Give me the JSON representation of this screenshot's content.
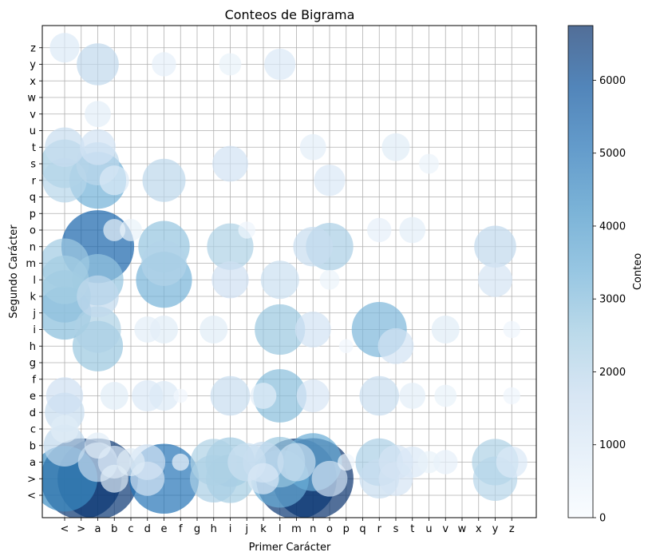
{
  "chart_data": {
    "type": "scatter",
    "title": "Conteos de Bigrama",
    "xlabel": "Primer Carácter",
    "ylabel": "Segundo Carácter",
    "x_categories": [
      "<",
      ">",
      "a",
      "b",
      "c",
      "d",
      "e",
      "f",
      "g",
      "h",
      "i",
      "j",
      "k",
      "l",
      "m",
      "n",
      "o",
      "p",
      "q",
      "r",
      "s",
      "t",
      "u",
      "v",
      "w",
      "x",
      "y",
      "z"
    ],
    "y_categories": [
      "<",
      ">",
      "a",
      "b",
      "c",
      "d",
      "e",
      "f",
      "g",
      "h",
      "i",
      "j",
      "k",
      "l",
      "m",
      "n",
      "o",
      "p",
      "q",
      "r",
      "s",
      "t",
      "u",
      "v",
      "w",
      "x",
      "y",
      "z"
    ],
    "grid": true,
    "colorbar": {
      "label": "Conteo",
      "min": 0,
      "max": 6750,
      "ticks": [
        "0",
        "1000",
        "2000",
        "3000",
        "4000",
        "5000",
        "6000"
      ],
      "colors": [
        "#f7fbff",
        "#deebf7",
        "#c6dbef",
        "#9ecae1",
        "#6baed6",
        "#4292c6",
        "#2171b5",
        "#08519c",
        "#08306b"
      ],
      "alpha": 0.7
    },
    "points": [
      {
        "x": "<",
        "y": ">",
        "count": 4400
      },
      {
        "x": "<",
        "y": "b",
        "count": 1800
      },
      {
        "x": "<",
        "y": "c",
        "count": 800
      },
      {
        "x": "<",
        "y": "d",
        "count": 1600
      },
      {
        "x": "<",
        "y": "e",
        "count": 1400
      },
      {
        "x": "<",
        "y": "j",
        "count": 2900
      },
      {
        "x": "<",
        "y": "k",
        "count": 2800
      },
      {
        "x": "<",
        "y": "l",
        "count": 2400
      },
      {
        "x": "<",
        "y": "m",
        "count": 2500
      },
      {
        "x": "<",
        "y": "r",
        "count": 2000
      },
      {
        "x": "<",
        "y": "s",
        "count": 2400
      },
      {
        "x": "<",
        "y": "t",
        "count": 1600
      },
      {
        "x": "<",
        "y": "z",
        "count": 900
      },
      {
        "x": ">",
        "y": ">",
        "count": 6640
      },
      {
        "x": "a",
        "y": ">",
        "count": 6600
      },
      {
        "x": "a",
        "y": "a",
        "count": 1600
      },
      {
        "x": "a",
        "y": "b",
        "count": 700
      },
      {
        "x": "a",
        "y": "h",
        "count": 2600
      },
      {
        "x": "a",
        "y": "i",
        "count": 2200
      },
      {
        "x": "a",
        "y": "k",
        "count": 1800
      },
      {
        "x": "a",
        "y": "l",
        "count": 2700
      },
      {
        "x": "a",
        "y": "n",
        "count": 5400
      },
      {
        "x": "a",
        "y": "r",
        "count": 3300
      },
      {
        "x": "a",
        "y": "s",
        "count": 1900
      },
      {
        "x": "a",
        "y": "t",
        "count": 1300
      },
      {
        "x": "a",
        "y": "v",
        "count": 700
      },
      {
        "x": "a",
        "y": "y",
        "count": 1800
      },
      {
        "x": "b",
        "y": ">",
        "count": 800
      },
      {
        "x": "b",
        "y": "a",
        "count": 1100
      },
      {
        "x": "b",
        "y": "e",
        "count": 800
      },
      {
        "x": "b",
        "y": "r",
        "count": 900
      },
      {
        "x": "b",
        "y": "o",
        "count": 500
      },
      {
        "x": "c",
        "y": "a",
        "count": 800
      },
      {
        "x": "c",
        "y": "o",
        "count": 500
      },
      {
        "x": "d",
        "y": ">",
        "count": 1200
      },
      {
        "x": "d",
        "y": "a",
        "count": 1300
      },
      {
        "x": "d",
        "y": "e",
        "count": 1000
      },
      {
        "x": "d",
        "y": "i",
        "count": 700
      },
      {
        "x": "e",
        "y": ">",
        "count": 5000
      },
      {
        "x": "e",
        "y": "e",
        "count": 900
      },
      {
        "x": "e",
        "y": "l",
        "count": 3200
      },
      {
        "x": "e",
        "y": "m",
        "count": 2100
      },
      {
        "x": "e",
        "y": "n",
        "count": 2700
      },
      {
        "x": "e",
        "y": "r",
        "count": 1900
      },
      {
        "x": "e",
        "y": "i",
        "count": 800
      },
      {
        "x": "e",
        "y": "y",
        "count": 600
      },
      {
        "x": "f",
        "y": "a",
        "count": 300
      },
      {
        "x": "f",
        "y": "e",
        "count": 200
      },
      {
        "x": "h",
        "y": ">",
        "count": 2300
      },
      {
        "x": "h",
        "y": "a",
        "count": 2200
      },
      {
        "x": "h",
        "y": "i",
        "count": 800
      },
      {
        "x": "i",
        "y": ">",
        "count": 2400
      },
      {
        "x": "i",
        "y": "a",
        "count": 2500
      },
      {
        "x": "i",
        "y": "e",
        "count": 1600
      },
      {
        "x": "i",
        "y": "l",
        "count": 1400
      },
      {
        "x": "i",
        "y": "n",
        "count": 2200
      },
      {
        "x": "i",
        "y": "s",
        "count": 1300
      },
      {
        "x": "i",
        "y": "y",
        "count": 500
      },
      {
        "x": "j",
        "y": "a",
        "count": 1500
      },
      {
        "x": "j",
        "y": "o",
        "count": 300
      },
      {
        "x": "k",
        "y": "a",
        "count": 1700
      },
      {
        "x": "k",
        "y": "e",
        "count": 700
      },
      {
        "x": "k",
        "y": ">",
        "count": 1000
      },
      {
        "x": "l",
        "y": ">",
        "count": 3400
      },
      {
        "x": "l",
        "y": "a",
        "count": 2600
      },
      {
        "x": "l",
        "y": "e",
        "count": 2900
      },
      {
        "x": "l",
        "y": "i",
        "count": 2600
      },
      {
        "x": "l",
        "y": "l",
        "count": 1500
      },
      {
        "x": "l",
        "y": "y",
        "count": 1000
      },
      {
        "x": "m",
        "y": ">",
        "count": 6600
      },
      {
        "x": "m",
        "y": "a",
        "count": 1500
      },
      {
        "x": "n",
        "y": ">",
        "count": 6700
      },
      {
        "x": "n",
        "y": "a",
        "count": 3400
      },
      {
        "x": "n",
        "y": "i",
        "count": 1300
      },
      {
        "x": "n",
        "y": "n",
        "count": 1600
      },
      {
        "x": "n",
        "y": "e",
        "count": 1100
      },
      {
        "x": "n",
        "y": "t",
        "count": 700
      },
      {
        "x": "o",
        "y": ">",
        "count": 1300
      },
      {
        "x": "o",
        "y": "n",
        "count": 2300
      },
      {
        "x": "o",
        "y": "r",
        "count": 1000
      },
      {
        "x": "o",
        "y": "l",
        "count": 400
      },
      {
        "x": "p",
        "y": "a",
        "count": 300
      },
      {
        "x": "p",
        "y": "h",
        "count": 200
      },
      {
        "x": "r",
        "y": ">",
        "count": 1600
      },
      {
        "x": "r",
        "y": "a",
        "count": 2300
      },
      {
        "x": "r",
        "y": "e",
        "count": 1600
      },
      {
        "x": "r",
        "y": "i",
        "count": 3100
      },
      {
        "x": "r",
        "y": "o",
        "count": 600
      },
      {
        "x": "s",
        "y": ">",
        "count": 1200
      },
      {
        "x": "s",
        "y": "a",
        "count": 1200
      },
      {
        "x": "s",
        "y": "h",
        "count": 1300
      },
      {
        "x": "s",
        "y": "t",
        "count": 800
      },
      {
        "x": "t",
        "y": "a",
        "count": 1000
      },
      {
        "x": "t",
        "y": "e",
        "count": 700
      },
      {
        "x": "t",
        "y": "o",
        "count": 700
      },
      {
        "x": "u",
        "y": "a",
        "count": 500
      },
      {
        "x": "u",
        "y": "s",
        "count": 400
      },
      {
        "x": "v",
        "y": "a",
        "count": 600
      },
      {
        "x": "v",
        "y": "i",
        "count": 800
      },
      {
        "x": "v",
        "y": "e",
        "count": 500
      },
      {
        "x": "y",
        "y": ">",
        "count": 2000
      },
      {
        "x": "y",
        "y": "a",
        "count": 2200
      },
      {
        "x": "y",
        "y": "l",
        "count": 1200
      },
      {
        "x": "y",
        "y": "n",
        "count": 1800
      },
      {
        "x": "z",
        "y": "a",
        "count": 1000
      },
      {
        "x": "z",
        "y": "e",
        "count": 300
      },
      {
        "x": "z",
        "y": "i",
        "count": 300
      }
    ]
  }
}
